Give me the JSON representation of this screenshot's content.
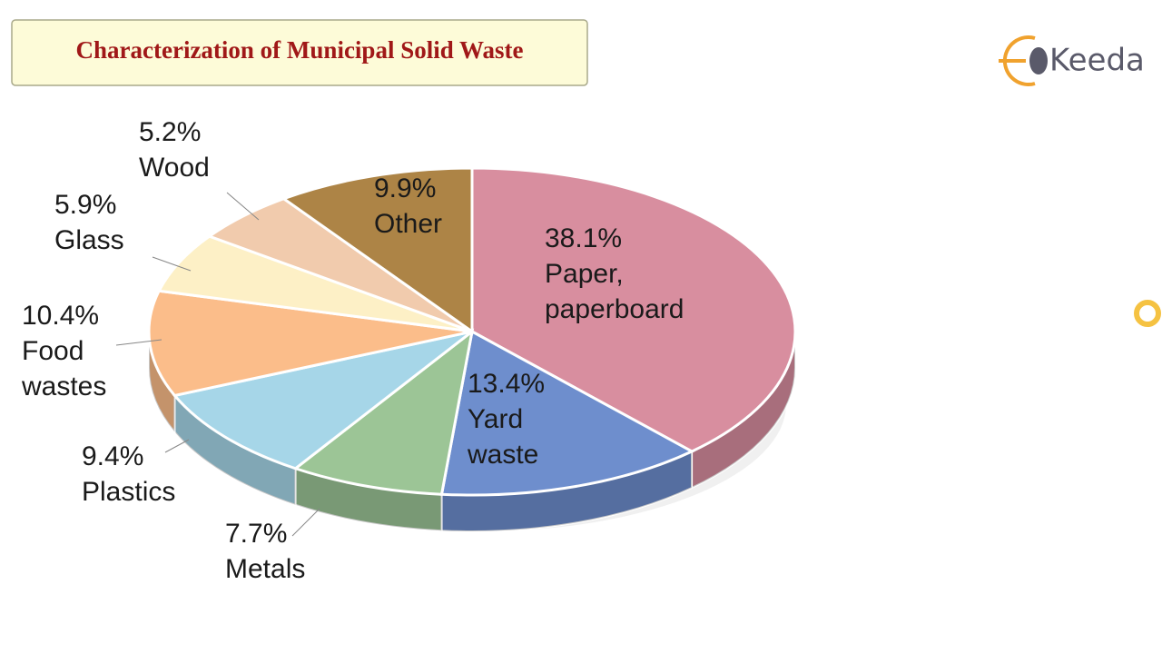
{
  "logo": "Keeda",
  "chart_data": {
    "type": "pie",
    "title": "Characterization of Municipal Solid Waste",
    "categories": [
      "Paper, paperboard",
      "Yard waste",
      "Metals",
      "Plastics",
      "Food wastes",
      "Glass",
      "Wood",
      "Other"
    ],
    "values": [
      38.1,
      13.4,
      7.7,
      9.4,
      10.4,
      5.9,
      5.2,
      9.9
    ],
    "value_labels": [
      "38.1%",
      "13.4%",
      "7.7%",
      "9.4%",
      "10.4%",
      "5.9%",
      "5.2%",
      "9.9%"
    ],
    "colors": [
      "#d88e9f",
      "#6e8ecd",
      "#9cc596",
      "#a6d6e8",
      "#fbbd8a",
      "#fdf0c6",
      "#f1cbad",
      "#ad8446"
    ]
  }
}
